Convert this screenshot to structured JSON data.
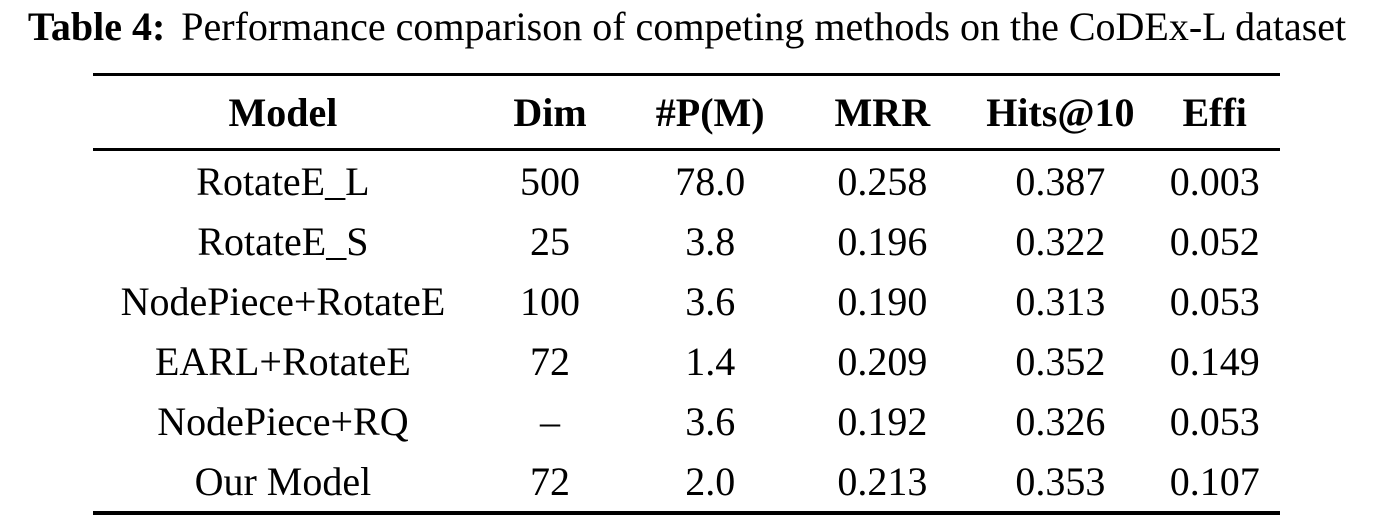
{
  "caption": {
    "label": "Table 4:",
    "text": "Performance comparison of competing methods on the CoDEx-L dataset"
  },
  "chart_data": {
    "type": "table",
    "title": "Performance comparison of competing methods on the CoDEx-L dataset",
    "headers": [
      "Model",
      "Dim",
      "#P(M)",
      "MRR",
      "Hits@10",
      "Effi"
    ],
    "rows": [
      [
        "RotateE_L",
        "500",
        "78.0",
        "0.258",
        "0.387",
        "0.003"
      ],
      [
        "RotateE_S",
        "25",
        "3.8",
        "0.196",
        "0.322",
        "0.052"
      ],
      [
        "NodePiece+RotateE",
        "100",
        "3.6",
        "0.190",
        "0.313",
        "0.053"
      ],
      [
        "EARL+RotateE",
        "72",
        "1.4",
        "0.209",
        "0.352",
        "0.149"
      ],
      [
        "NodePiece+RQ",
        "–",
        "3.6",
        "0.192",
        "0.326",
        "0.053"
      ],
      [
        "Our Model",
        "72",
        "2.0",
        "0.213",
        "0.353",
        "0.107"
      ]
    ]
  },
  "colors": {
    "text": "#000000",
    "background": "#ffffff",
    "rule": "#000000"
  }
}
